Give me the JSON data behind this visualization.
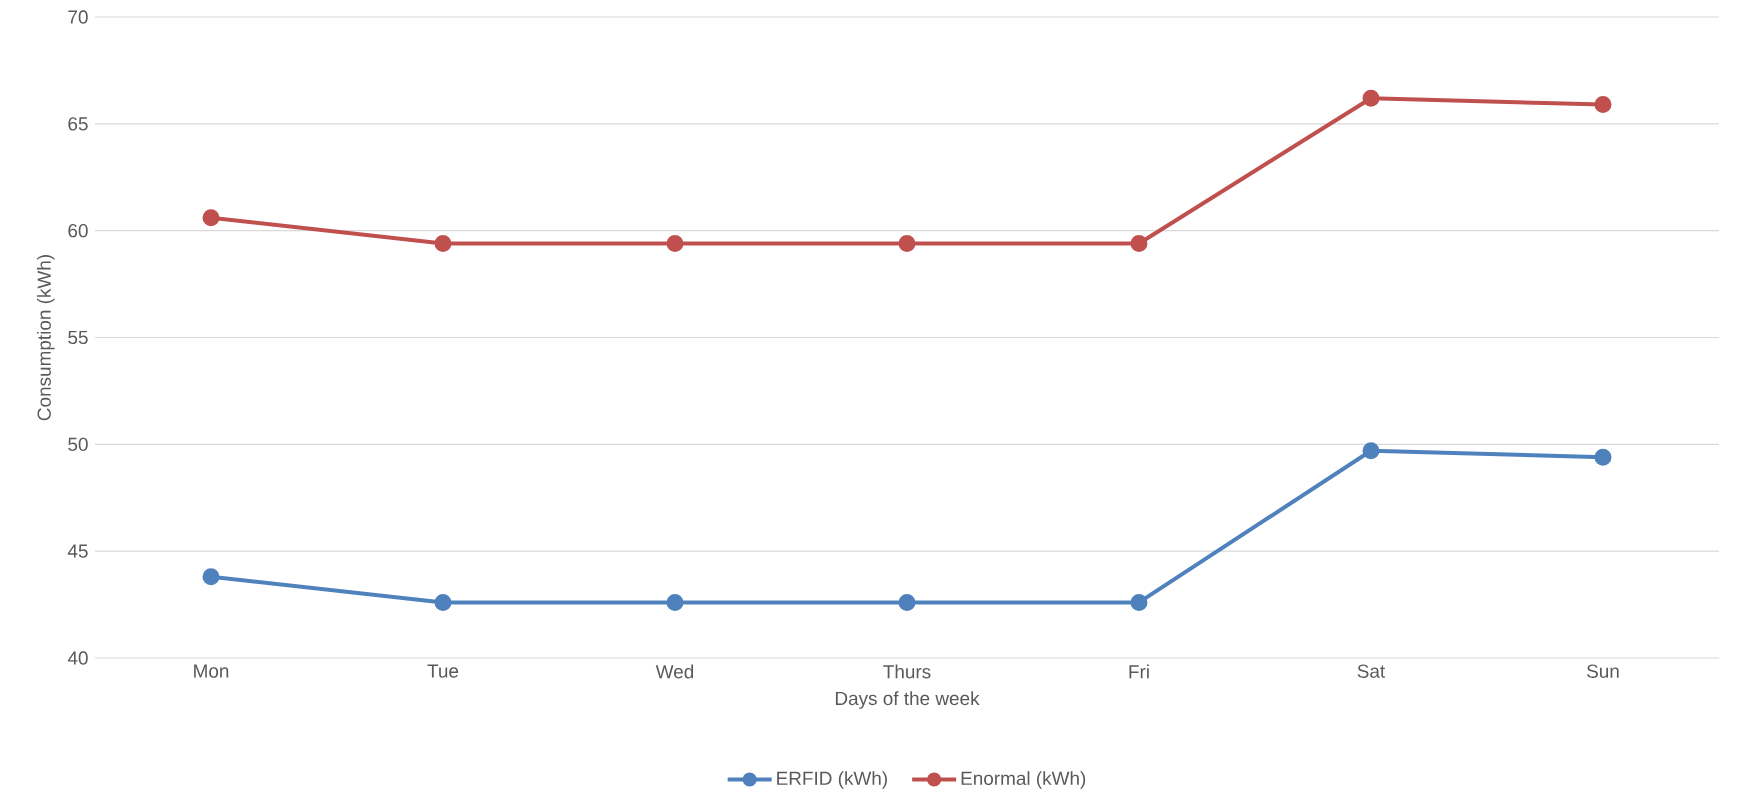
{
  "chart_data": {
    "type": "line",
    "xlabel": "Days of the week",
    "ylabel": "Consumption (kWh)",
    "categories": [
      "Mon",
      "Tue",
      "Wed",
      "Thurs",
      "Fri",
      "Sat",
      "Sun"
    ],
    "series": [
      {
        "name": "ERFID (kWh)",
        "color": "#4f81bd",
        "values": [
          43.8,
          42.6,
          42.6,
          42.6,
          42.6,
          49.7,
          49.4
        ]
      },
      {
        "name": "Enormal (kWh)",
        "color": "#c0504d",
        "values": [
          60.6,
          59.4,
          59.4,
          59.4,
          59.4,
          66.2,
          65.9
        ]
      }
    ],
    "ylim": [
      40,
      70
    ],
    "yticks": [
      40,
      45,
      50,
      55,
      60,
      65,
      70
    ],
    "grid": "y",
    "legend": "bottom",
    "marker": "circle",
    "line_style": "solid"
  }
}
